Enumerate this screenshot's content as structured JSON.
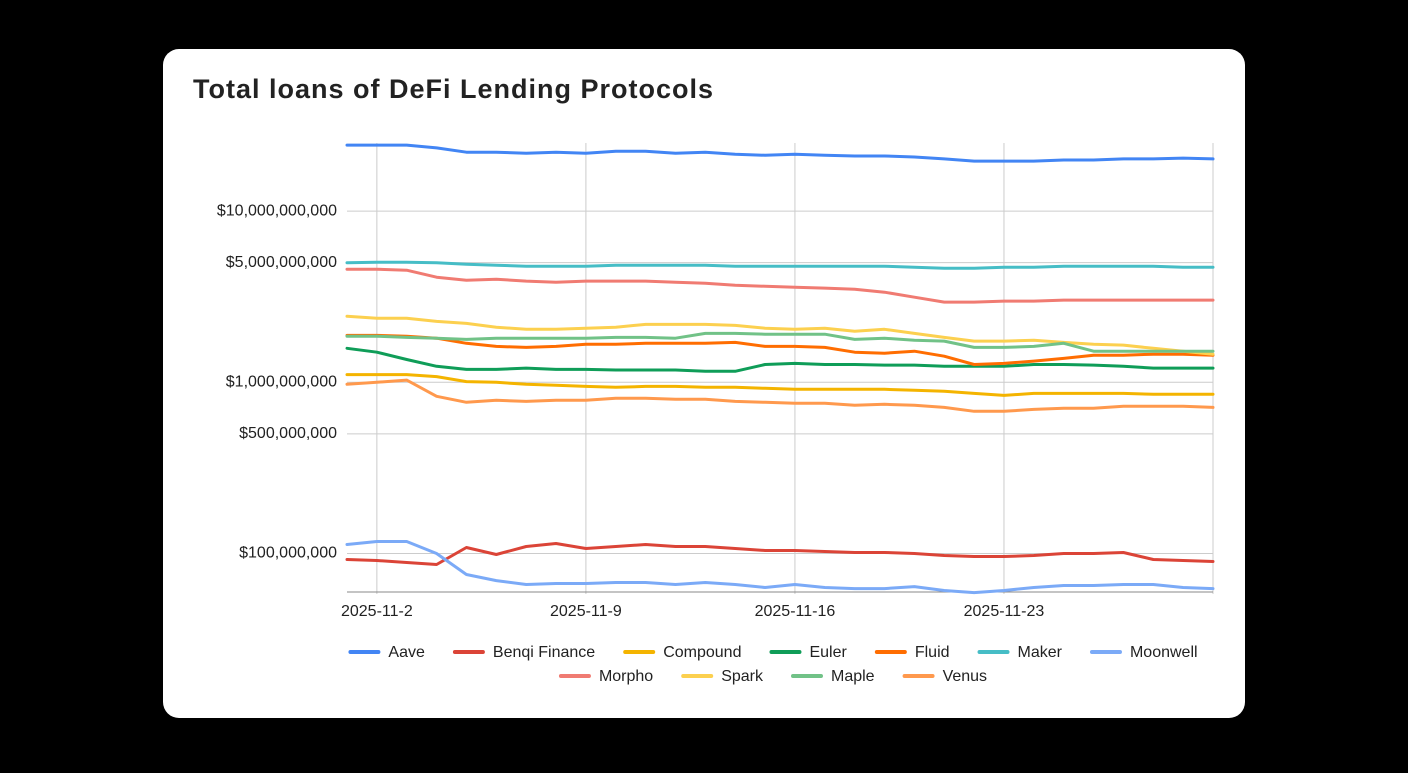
{
  "chart_data": {
    "type": "line",
    "title": "Total loans of DeFi Lending Protocols",
    "log_scale": true,
    "grid": true,
    "legend": "bottom",
    "categories": [
      null,
      "2025-11-2",
      null,
      null,
      null,
      null,
      null,
      null,
      "2025-11-9",
      null,
      null,
      null,
      null,
      null,
      null,
      "2025-11-16",
      null,
      null,
      null,
      null,
      null,
      null,
      "2025-11-23",
      null,
      null,
      null,
      null,
      null,
      null,
      null
    ],
    "ylim": [
      58000000,
      25000000000
    ],
    "yticks": [
      {
        "value": 100000000,
        "label": "$100,000,000"
      },
      {
        "value": 500000000,
        "label": "$500,000,000"
      },
      {
        "value": 1000000000,
        "label": "$1,000,000,000"
      },
      {
        "value": 5000000000,
        "label": "$5,000,000,000"
      },
      {
        "value": 10000000000,
        "label": "$10,000,000,000"
      }
    ],
    "series": [
      {
        "name": "Aave",
        "color": "#4285f4",
        "values": [
          24300000000,
          24300000000,
          24300000000,
          23400000000,
          22100000000,
          22100000000,
          21800000000,
          22100000000,
          21800000000,
          22400000000,
          22400000000,
          21800000000,
          22100000000,
          21500000000,
          21200000000,
          21500000000,
          21200000000,
          21000000000,
          21000000000,
          20700000000,
          20200000000,
          19600000000,
          19600000000,
          19600000000,
          19900000000,
          19900000000,
          20200000000,
          20200000000,
          20400000000,
          20200000000
        ]
      },
      {
        "name": "Benqi Finance",
        "color": "#db4437",
        "values": [
          92200000,
          91000000,
          88600000,
          86200000,
          108400000,
          98700000,
          109900000,
          114400000,
          107000000,
          109900000,
          112900000,
          109900000,
          109900000,
          107000000,
          104100000,
          104100000,
          102700000,
          101400000,
          101400000,
          100000000,
          97300000,
          96000000,
          96000000,
          97300000,
          100000000,
          100000000,
          101400000,
          92200000,
          91000000,
          89800000
        ]
      },
      {
        "name": "Compound",
        "color": "#f4b400",
        "values": [
          1110000000,
          1110000000,
          1110000000,
          1080000000,
          1010000000,
          1000000000,
          973000000,
          960000000,
          947000000,
          935000000,
          947000000,
          947000000,
          935000000,
          935000000,
          922000000,
          910000000,
          910000000,
          910000000,
          910000000,
          898000000,
          886000000,
          862000000,
          839000000,
          862000000,
          862000000,
          862000000,
          862000000,
          851000000,
          851000000,
          851000000
        ]
      },
      {
        "name": "Euler",
        "color": "#0f9d58",
        "values": [
          1580000000,
          1500000000,
          1360000000,
          1240000000,
          1190000000,
          1190000000,
          1210000000,
          1190000000,
          1190000000,
          1180000000,
          1180000000,
          1180000000,
          1160000000,
          1160000000,
          1270000000,
          1290000000,
          1270000000,
          1270000000,
          1260000000,
          1260000000,
          1240000000,
          1240000000,
          1240000000,
          1270000000,
          1270000000,
          1260000000,
          1240000000,
          1210000000,
          1210000000,
          1210000000
        ]
      },
      {
        "name": "Fluid",
        "color": "#ff6d01",
        "values": [
          1880000000,
          1880000000,
          1860000000,
          1810000000,
          1690000000,
          1620000000,
          1600000000,
          1620000000,
          1670000000,
          1670000000,
          1690000000,
          1690000000,
          1690000000,
          1710000000,
          1620000000,
          1620000000,
          1600000000,
          1500000000,
          1480000000,
          1520000000,
          1420000000,
          1270000000,
          1290000000,
          1330000000,
          1380000000,
          1440000000,
          1440000000,
          1460000000,
          1460000000,
          1440000000
        ]
      },
      {
        "name": "Maker",
        "color": "#46bdc6",
        "values": [
          5000000000,
          5030000000,
          5030000000,
          5000000000,
          4900000000,
          4830000000,
          4770000000,
          4770000000,
          4770000000,
          4830000000,
          4830000000,
          4830000000,
          4830000000,
          4770000000,
          4770000000,
          4770000000,
          4770000000,
          4770000000,
          4770000000,
          4700000000,
          4640000000,
          4640000000,
          4700000000,
          4700000000,
          4770000000,
          4770000000,
          4770000000,
          4770000000,
          4700000000,
          4700000000
        ]
      },
      {
        "name": "Moonwell",
        "color": "#7baaf7",
        "values": [
          112900000,
          117500000,
          117500000,
          100000000,
          75400000,
          69500000,
          65900000,
          66800000,
          66800000,
          67700000,
          67700000,
          65900000,
          67700000,
          65900000,
          63300000,
          65900000,
          63300000,
          62400000,
          62400000,
          64100000,
          60800000,
          59100000,
          60800000,
          63300000,
          65000000,
          65000000,
          65900000,
          65900000,
          63300000,
          62400000
        ]
      },
      {
        "name": "Morpho",
        "color": "#f07b72",
        "values": [
          4580000000,
          4580000000,
          4520000000,
          4110000000,
          3950000000,
          4000000000,
          3900000000,
          3840000000,
          3900000000,
          3900000000,
          3900000000,
          3840000000,
          3790000000,
          3690000000,
          3640000000,
          3590000000,
          3550000000,
          3500000000,
          3360000000,
          3140000000,
          2940000000,
          2940000000,
          2980000000,
          2980000000,
          3020000000,
          3020000000,
          3020000000,
          3020000000,
          3020000000,
          3020000000
        ]
      },
      {
        "name": "Spark",
        "color": "#fcd04f",
        "values": [
          2430000000,
          2370000000,
          2370000000,
          2270000000,
          2210000000,
          2100000000,
          2040000000,
          2040000000,
          2070000000,
          2100000000,
          2180000000,
          2180000000,
          2180000000,
          2150000000,
          2070000000,
          2040000000,
          2070000000,
          1990000000,
          2040000000,
          1930000000,
          1830000000,
          1740000000,
          1740000000,
          1760000000,
          1710000000,
          1670000000,
          1650000000,
          1580000000,
          1520000000,
          1460000000
        ]
      },
      {
        "name": "Maple",
        "color": "#71c287",
        "values": [
          1860000000,
          1860000000,
          1830000000,
          1810000000,
          1780000000,
          1810000000,
          1810000000,
          1810000000,
          1810000000,
          1830000000,
          1830000000,
          1810000000,
          1930000000,
          1930000000,
          1910000000,
          1910000000,
          1910000000,
          1780000000,
          1810000000,
          1760000000,
          1740000000,
          1600000000,
          1600000000,
          1620000000,
          1690000000,
          1520000000,
          1520000000,
          1520000000,
          1520000000,
          1520000000
        ]
      },
      {
        "name": "Venus",
        "color": "#ff994d",
        "values": [
          973000000,
          1000000000,
          1030000000,
          828000000,
          764000000,
          785000000,
          774000000,
          785000000,
          785000000,
          806000000,
          806000000,
          796000000,
          796000000,
          774000000,
          764000000,
          754000000,
          754000000,
          734000000,
          744000000,
          734000000,
          714000000,
          677000000,
          677000000,
          695000000,
          705000000,
          705000000,
          724000000,
          724000000,
          724000000,
          714000000
        ]
      }
    ]
  }
}
